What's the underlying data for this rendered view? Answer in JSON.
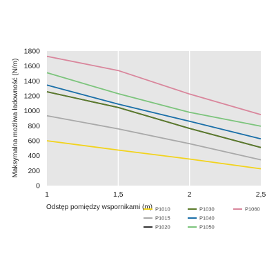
{
  "chart_data": {
    "type": "line",
    "xlabel": "Odstęp pomiędzy wspornikami (m)",
    "ylabel": "Maksymalna możliwa ładowność (N/m)",
    "xlim": [
      1,
      2.5
    ],
    "ylim": [
      0,
      1800
    ],
    "x_ticks": [
      1,
      1.5,
      2,
      2.5
    ],
    "x_tick_labels": [
      "1",
      "1,5",
      "2",
      "2,5"
    ],
    "y_ticks": [
      0,
      200,
      400,
      600,
      800,
      1000,
      1200,
      1400,
      1600,
      1800
    ],
    "y_tick_labels": [
      "0",
      "200",
      "400",
      "600",
      "800",
      "1000",
      "1200",
      "1400",
      "1600",
      "1800"
    ],
    "grid": "vertical",
    "plot_background": "#e6e6e6",
    "legend_position": "bottom",
    "x": [
      1,
      1.5,
      2,
      2.5
    ],
    "series": [
      {
        "name": "P1010",
        "color": "#f2d31c",
        "values": [
          600,
          475,
          355,
          225
        ]
      },
      {
        "name": "P1015",
        "color": "#a9a9a9",
        "values": [
          935,
          760,
          560,
          345
        ]
      },
      {
        "name": "P1020",
        "color": "#333333",
        "values": [
          1255,
          1045,
          765,
          510
        ]
      },
      {
        "name": "P1030",
        "color": "#5a7a2a",
        "values": [
          1255,
          1045,
          765,
          510
        ]
      },
      {
        "name": "P1040",
        "color": "#1a6fa8",
        "values": [
          1345,
          1090,
          860,
          625
        ]
      },
      {
        "name": "P1050",
        "color": "#7cc47c",
        "values": [
          1510,
          1230,
          980,
          795
        ]
      },
      {
        "name": "P1060",
        "color": "#d9869c",
        "values": [
          1730,
          1540,
          1225,
          950
        ]
      }
    ]
  }
}
